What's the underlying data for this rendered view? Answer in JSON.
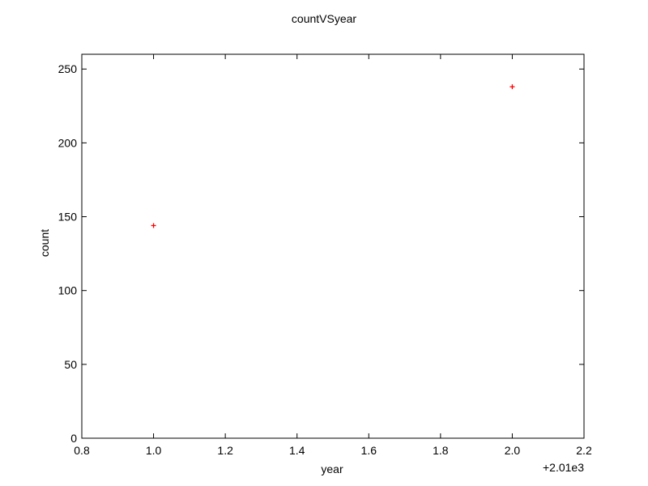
{
  "chart_data": {
    "type": "scatter",
    "title": "countVSyear",
    "xlabel": "year",
    "ylabel": "count",
    "x_offset_label": "+2.01e3",
    "xlim": [
      0.8,
      2.2
    ],
    "ylim": [
      0,
      260
    ],
    "x_ticks": [
      "0.8",
      "1.0",
      "1.2",
      "1.4",
      "1.6",
      "1.8",
      "2.0",
      "2.2"
    ],
    "x_tick_values": [
      0.8,
      1.0,
      1.2,
      1.4,
      1.6,
      1.8,
      2.0,
      2.2
    ],
    "y_ticks": [
      "0",
      "50",
      "100",
      "150",
      "200",
      "250"
    ],
    "y_tick_values": [
      0,
      50,
      100,
      150,
      200,
      250
    ],
    "grid": false,
    "marker": "+",
    "series": [
      {
        "color": "#ff0000",
        "points": [
          {
            "x": 1.0,
            "y": 144
          },
          {
            "x": 2.0,
            "y": 238
          }
        ]
      }
    ]
  }
}
